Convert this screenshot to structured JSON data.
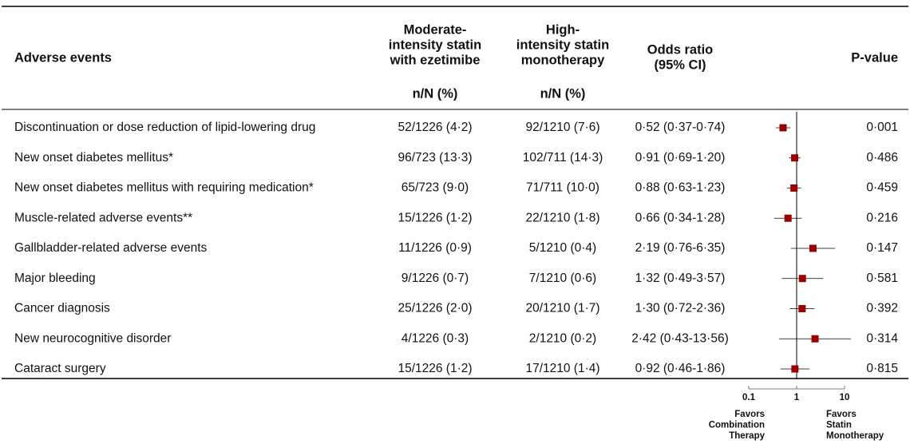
{
  "chart_data": {
    "type": "forest",
    "columns": {
      "event": "Adverse events",
      "group1": [
        "Moderate-",
        "intensity statin",
        "with ezetimibe"
      ],
      "group1_unit": "n/N (%)",
      "group2": [
        "High-",
        "intensity statin",
        "monotherapy"
      ],
      "group2_unit": "n/N (%)",
      "or": [
        "Odds ratio",
        "(95% CI)"
      ],
      "p": "P-value"
    },
    "categories": [
      "Discontinuation or dose reduction of lipid-lowering drug",
      "New onset diabetes mellitus*",
      "New onset diabetes mellitus with requiring medication*",
      "Muscle-related adverse events**",
      "Gallbladder-related adverse events",
      "Major bleeding",
      "Cancer diagnosis",
      "New neurocognitive disorder",
      "Cataract surgery"
    ],
    "group1": [
      "52/1226 (4·2)",
      "96/723 (13·3)",
      "65/723 (9·0)",
      "15/1226 (1·2)",
      "11/1226 (0·9)",
      "9/1226 (0·7)",
      "25/1226 (2·0)",
      "4/1226 (0·3)",
      "15/1226 (1·2)"
    ],
    "group2": [
      "92/1210 (7·6)",
      "102/711 (14·3)",
      "71/711 (10·0)",
      "22/1210 (1·8)",
      "5/1210 (0·4)",
      "7/1210 (0·6)",
      "20/1210 (1·7)",
      "2/1210 (0·2)",
      "17/1210 (1·4)"
    ],
    "values": [
      0.52,
      0.91,
      0.88,
      0.66,
      2.19,
      1.32,
      1.3,
      2.42,
      0.92
    ],
    "lower": [
      0.37,
      0.69,
      0.63,
      0.34,
      0.76,
      0.49,
      0.72,
      0.43,
      0.46
    ],
    "upper": [
      0.74,
      1.2,
      1.23,
      1.28,
      6.35,
      3.57,
      2.36,
      13.56,
      1.86
    ],
    "value_labels": [
      "0·52 (0·37-0·74)",
      "0·91 (0·69-1·20)",
      "0·88 (0·63-1·23)",
      "0·66 (0·34-1·28)",
      "2·19 (0·76-6·35)",
      "1·32 (0·49-3·57)",
      "1·30 (0·72-2·36)",
      "2·42 (0·43-13·56)",
      "0·92 (0·46-1·86)"
    ],
    "p_values": [
      "0·001",
      "0·486",
      "0·459",
      "0·216",
      "0·147",
      "0·581",
      "0·392",
      "0·314",
      "0·815"
    ],
    "color": "#9b0000",
    "xscale": "log",
    "xlim": [
      0.1,
      10
    ],
    "xticks": [
      0.1,
      1,
      10
    ],
    "reference": 1,
    "left_label": [
      "Favors",
      "Combination",
      "Therapy"
    ],
    "right_label": [
      "Favors",
      "Statin",
      "Monotherapy"
    ]
  }
}
